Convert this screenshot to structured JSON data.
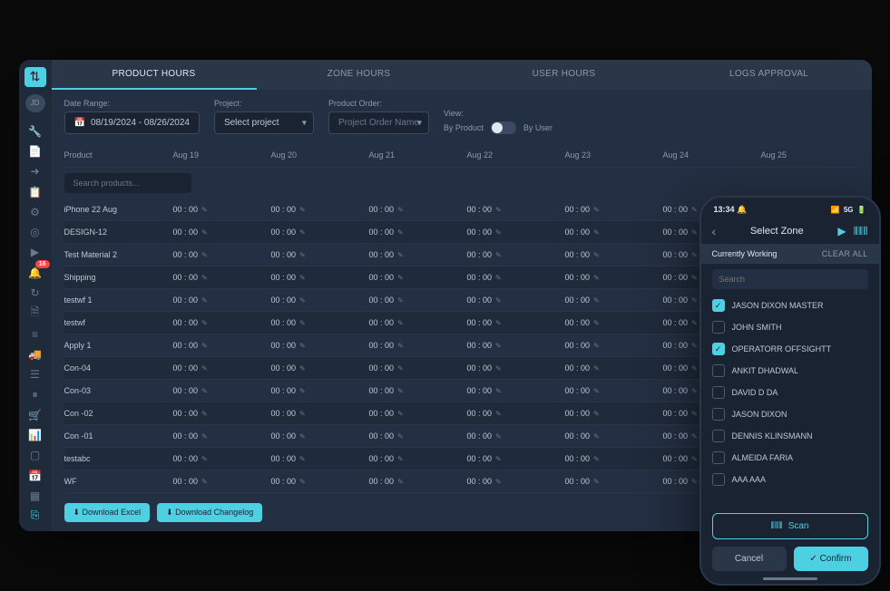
{
  "colors": {
    "accent": "#4dd0e1",
    "bg_dark": "#1a2332",
    "bg_mid": "#232f42",
    "bg_light": "#2a3749",
    "text": "#c0c8d4",
    "text_dim": "#8a9aad",
    "danger": "#ff4444"
  },
  "sidebar": {
    "logo": "⇅",
    "avatar": "JD",
    "notification_count": "16",
    "icons": [
      "wrench",
      "file",
      "arrow-right",
      "document",
      "gear",
      "target",
      "play",
      "bell",
      "refresh",
      "file2",
      "lines",
      "truck",
      "list",
      "pause",
      "cart",
      "bars",
      "square",
      "calendar",
      "grid",
      "exit"
    ]
  },
  "tabs": [
    {
      "label": "PRODUCT HOURS",
      "active": true
    },
    {
      "label": "ZONE HOURS",
      "active": false
    },
    {
      "label": "USER HOURS",
      "active": false
    },
    {
      "label": "LOGS APPROVAL",
      "active": false
    }
  ],
  "filters": {
    "date_label": "Date Range:",
    "date_value": "08/19/2024 - 08/26/2024",
    "project_label": "Project:",
    "project_placeholder": "Select project",
    "order_label": "Product Order:",
    "order_placeholder": "Project Order Name",
    "view_label": "View:",
    "toggle_left": "By Product",
    "toggle_right": "By User"
  },
  "table": {
    "columns": [
      "Product",
      "Aug 19",
      "Aug 20",
      "Aug 21",
      "Aug 22",
      "Aug 23",
      "Aug 24",
      "Aug 25"
    ],
    "search_placeholder": "Search products...",
    "default_value": "00 : 00",
    "products": [
      "iPhone 22 Aug",
      "DESIGN-12",
      "Test Material 2",
      "Shipping",
      "testwf 1",
      "testwf",
      "Apply 1",
      "Con-04",
      "Con-03",
      "Con -02",
      "Con -01",
      "testabc",
      "WF"
    ]
  },
  "footer": {
    "download_excel": "Download Excel",
    "download_changelog": "Download Changelog"
  },
  "mobile": {
    "time": "13:34",
    "signal": "5G",
    "title": "Select Zone",
    "section": "Currently Working",
    "clear_all": "CLEAR ALL",
    "search_placeholder": "Search",
    "users": [
      {
        "name": "JASON DIXON MASTER",
        "checked": true
      },
      {
        "name": "JOHN SMITH",
        "checked": false
      },
      {
        "name": "OPERATORR OFFSIGHTT",
        "checked": true
      },
      {
        "name": "ANKIT DHADWAL",
        "checked": false
      },
      {
        "name": "DAVID D DA",
        "checked": false
      },
      {
        "name": "JASON DIXON",
        "checked": false
      },
      {
        "name": "DENNIS KLINSMANN",
        "checked": false
      },
      {
        "name": "ALMEIDA FARIA",
        "checked": false
      },
      {
        "name": "AAA AAA",
        "checked": false
      }
    ],
    "scan": "Scan",
    "cancel": "Cancel",
    "confirm": "Confirm"
  }
}
